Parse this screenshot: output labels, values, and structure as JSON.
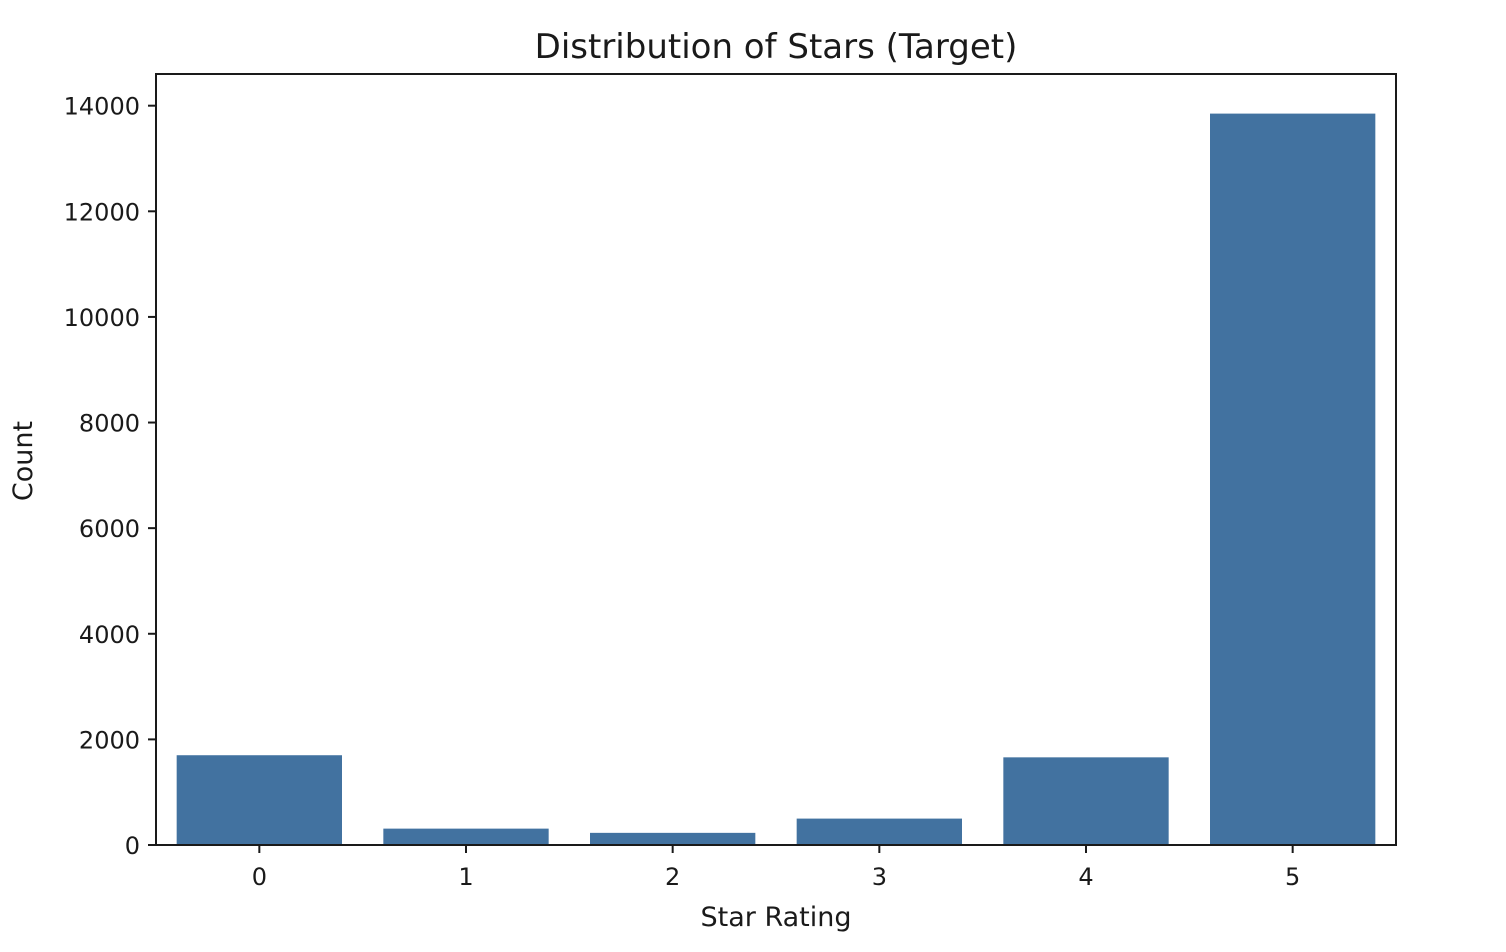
{
  "chart_data": {
    "type": "bar",
    "title": "Distribution of Stars (Target)",
    "xlabel": "Star Rating",
    "ylabel": "Count",
    "categories": [
      "0",
      "1",
      "2",
      "3",
      "4",
      "5"
    ],
    "values": [
      1700,
      310,
      230,
      500,
      1660,
      13850
    ],
    "ylim": [
      0,
      14600
    ],
    "yticks": [
      0,
      2000,
      4000,
      6000,
      8000,
      10000,
      12000,
      14000
    ],
    "ytick_labels": [
      "0",
      "2000",
      "4000",
      "6000",
      "8000",
      "10000",
      "12000",
      "14000"
    ],
    "grid": false,
    "legend": "none",
    "bar_color": "#4272a0"
  }
}
